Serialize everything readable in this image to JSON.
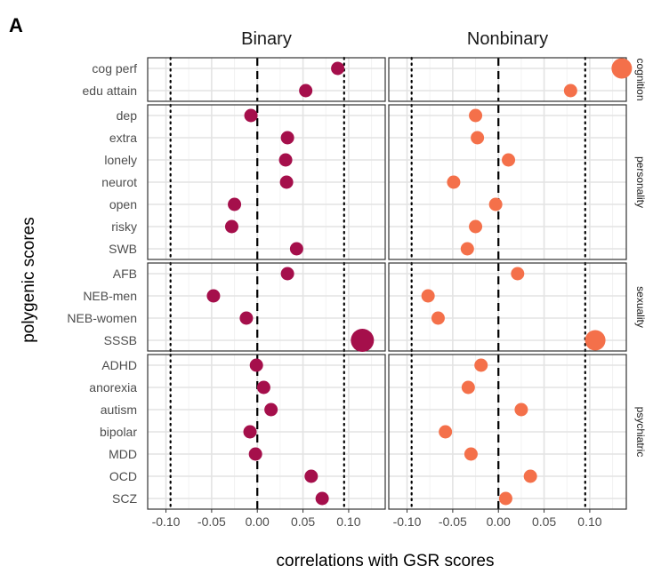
{
  "figure": {
    "panel_tag": "A"
  },
  "chart_data": {
    "type": "scatter",
    "panel_tag": "A",
    "xlabel": "correlations with GSR scores",
    "ylabel": "polygenic scores",
    "xlim": [
      -0.12,
      0.14
    ],
    "xticks": [
      -0.1,
      -0.05,
      0.0,
      0.05,
      0.1
    ],
    "xtick_labels": [
      "-0.10",
      "-0.05",
      "0.00",
      "0.05",
      "0.10"
    ],
    "reference_lines": {
      "dashed": 0.0,
      "dotted": [
        -0.095,
        0.095
      ]
    },
    "grid": true,
    "columns": [
      {
        "name": "Binary",
        "color": "#a50f4b"
      },
      {
        "name": "Nonbinary",
        "color": "#f4704a"
      }
    ],
    "rows": [
      {
        "name": "cognition",
        "labels": [
          "cog perf",
          "edu attain"
        ]
      },
      {
        "name": "personality",
        "labels": [
          "dep",
          "extra",
          "lonely",
          "neurot",
          "open",
          "risky",
          "SWB"
        ]
      },
      {
        "name": "sexuality",
        "labels": [
          "AFB",
          "NEB-men",
          "NEB-women",
          "SSSB"
        ]
      },
      {
        "name": "psychiatric",
        "labels": [
          "ADHD",
          "anorexia",
          "autism",
          "bipolar",
          "MDD",
          "OCD",
          "SCZ"
        ]
      }
    ],
    "series": [
      {
        "name": "Binary",
        "points": [
          {
            "label": "cog perf",
            "x": 0.088,
            "size": 1
          },
          {
            "label": "edu attain",
            "x": 0.053,
            "size": 1
          },
          {
            "label": "dep",
            "x": -0.007,
            "size": 1
          },
          {
            "label": "extra",
            "x": 0.033,
            "size": 1
          },
          {
            "label": "lonely",
            "x": 0.031,
            "size": 1
          },
          {
            "label": "neurot",
            "x": 0.032,
            "size": 1
          },
          {
            "label": "open",
            "x": -0.025,
            "size": 1
          },
          {
            "label": "risky",
            "x": -0.028,
            "size": 1
          },
          {
            "label": "SWB",
            "x": 0.043,
            "size": 1
          },
          {
            "label": "AFB",
            "x": 0.033,
            "size": 1
          },
          {
            "label": "NEB-men",
            "x": -0.048,
            "size": 1
          },
          {
            "label": "NEB-women",
            "x": -0.012,
            "size": 1
          },
          {
            "label": "SSSB",
            "x": 0.115,
            "size": 3
          },
          {
            "label": "ADHD",
            "x": -0.001,
            "size": 1
          },
          {
            "label": "anorexia",
            "x": 0.007,
            "size": 1
          },
          {
            "label": "autism",
            "x": 0.015,
            "size": 1
          },
          {
            "label": "bipolar",
            "x": -0.008,
            "size": 1
          },
          {
            "label": "MDD",
            "x": -0.002,
            "size": 1
          },
          {
            "label": "OCD",
            "x": 0.059,
            "size": 1
          },
          {
            "label": "SCZ",
            "x": 0.071,
            "size": 1
          }
        ]
      },
      {
        "name": "Nonbinary",
        "points": [
          {
            "label": "cog perf",
            "x": 0.135,
            "size": 2
          },
          {
            "label": "edu attain",
            "x": 0.079,
            "size": 1
          },
          {
            "label": "dep",
            "x": -0.025,
            "size": 1
          },
          {
            "label": "extra",
            "x": -0.023,
            "size": 1
          },
          {
            "label": "lonely",
            "x": 0.011,
            "size": 1
          },
          {
            "label": "neurot",
            "x": -0.049,
            "size": 1
          },
          {
            "label": "open",
            "x": -0.003,
            "size": 1
          },
          {
            "label": "risky",
            "x": -0.025,
            "size": 1
          },
          {
            "label": "SWB",
            "x": -0.034,
            "size": 1
          },
          {
            "label": "AFB",
            "x": 0.021,
            "size": 1
          },
          {
            "label": "NEB-men",
            "x": -0.077,
            "size": 1
          },
          {
            "label": "NEB-women",
            "x": -0.066,
            "size": 1
          },
          {
            "label": "SSSB",
            "x": 0.106,
            "size": 2
          },
          {
            "label": "ADHD",
            "x": -0.019,
            "size": 1
          },
          {
            "label": "anorexia",
            "x": -0.033,
            "size": 1
          },
          {
            "label": "autism",
            "x": 0.025,
            "size": 1
          },
          {
            "label": "bipolar",
            "x": -0.058,
            "size": 1
          },
          {
            "label": "MDD",
            "x": -0.03,
            "size": 1
          },
          {
            "label": "OCD",
            "x": 0.035,
            "size": 1
          },
          {
            "label": "SCZ",
            "x": 0.008,
            "size": 1
          }
        ]
      }
    ]
  }
}
